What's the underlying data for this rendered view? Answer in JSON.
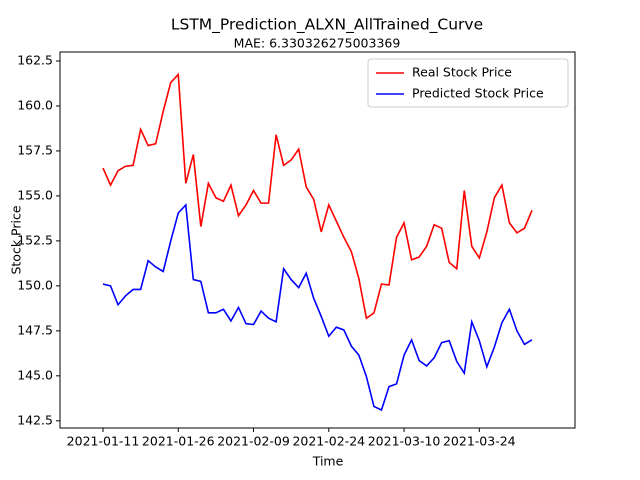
{
  "chart_data": {
    "type": "line",
    "title": "LSTM_Prediction_ALXN_AllTrained_Curve",
    "subtitle": "MAE: 6.330326275003369",
    "x_label": "Time",
    "y_label": "Stock Price",
    "categories": [
      "2021-01-11",
      null,
      null,
      null,
      null,
      null,
      null,
      null,
      null,
      null,
      "2021-01-26",
      null,
      null,
      null,
      null,
      null,
      null,
      null,
      null,
      null,
      "2021-02-09",
      null,
      null,
      null,
      null,
      null,
      null,
      null,
      null,
      null,
      "2021-02-24",
      null,
      null,
      null,
      null,
      null,
      null,
      null,
      null,
      null,
      "2021-03-10",
      null,
      null,
      null,
      null,
      null,
      null,
      null,
      null,
      null,
      "2021-03-24",
      null,
      null,
      null,
      null,
      null,
      null,
      null
    ],
    "series": [
      {
        "name": "Real Stock Price",
        "color": "#ff0000",
        "values": [
          156.55,
          155.6,
          156.4,
          156.65,
          156.7,
          158.7,
          157.8,
          157.9,
          159.7,
          161.3,
          161.75,
          155.7,
          157.3,
          153.3,
          155.7,
          154.9,
          154.7,
          155.6,
          153.9,
          154.5,
          155.3,
          154.6,
          154.6,
          158.4,
          156.7,
          157.0,
          157.6,
          155.5,
          154.8,
          153.0,
          154.5,
          153.6,
          152.7,
          151.9,
          150.4,
          148.2,
          148.5,
          150.1,
          150.05,
          152.7,
          153.5,
          151.45,
          151.6,
          152.2,
          153.4,
          153.2,
          151.3,
          150.95,
          155.3,
          152.2,
          151.55,
          153.0,
          154.9,
          155.6,
          153.5,
          152.95,
          153.2,
          154.2
        ]
      },
      {
        "name": "Predicted Stock Price",
        "color": "#0000ff",
        "values": [
          150.1,
          150.0,
          148.95,
          149.45,
          149.8,
          149.8,
          151.4,
          151.05,
          150.8,
          152.5,
          154.05,
          154.5,
          150.35,
          150.25,
          148.5,
          148.5,
          148.7,
          148.05,
          148.8,
          147.9,
          147.85,
          148.6,
          148.2,
          148.0,
          150.95,
          150.35,
          149.9,
          150.7,
          149.3,
          148.3,
          147.2,
          147.7,
          147.55,
          146.65,
          146.15,
          144.95,
          143.3,
          143.1,
          144.4,
          144.55,
          146.15,
          147.0,
          145.85,
          145.55,
          146.0,
          146.85,
          146.95,
          145.8,
          145.15,
          148.0,
          146.95,
          145.5,
          146.6,
          147.95,
          148.7,
          147.5,
          146.75,
          147.0
        ]
      }
    ],
    "ylim": [
      142.1,
      163.0
    ],
    "yticks": [
      142.5,
      {
        "value": 145,
        "label": "145.0"
      },
      147.5,
      {
        "value": 150,
        "label": "150.0"
      },
      152.5,
      {
        "value": 155,
        "label": "155.0"
      },
      157.5,
      {
        "value": 160,
        "label": "160.0"
      },
      162.5
    ],
    "grid": false,
    "legend": "upper right"
  }
}
